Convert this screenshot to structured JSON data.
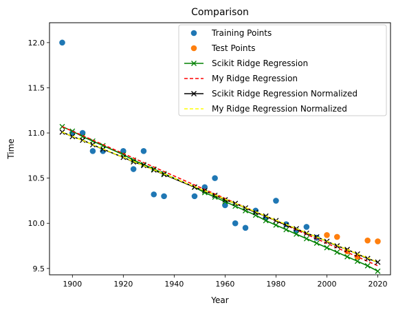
{
  "chart_data": {
    "type": "scatter",
    "title": "Comparison",
    "xlabel": "Year",
    "ylabel": "Time",
    "xlim": [
      1891,
      2025
    ],
    "ylim": [
      9.43,
      12.22
    ],
    "xticks": [
      1900,
      1920,
      1940,
      1960,
      1980,
      2000,
      2020
    ],
    "yticks": [
      9.5,
      10.0,
      10.5,
      11.0,
      11.5,
      12.0
    ],
    "ytick_labels": [
      "9.5",
      "10.0",
      "10.5",
      "11.0",
      "11.5",
      "12.0"
    ],
    "grid": false,
    "legend_position": "upper right",
    "colors": {
      "training": "#1f77b4",
      "test": "#ff7f0e",
      "scikit_ridge": "#008000",
      "my_ridge": "#ff0000",
      "scikit_ridge_normalized": "#000000",
      "my_ridge_normalized": "#ffff00"
    },
    "training_points": {
      "name": "Training Points",
      "x": [
        1896,
        1900,
        1904,
        1908,
        1912,
        1920,
        1924,
        1928,
        1932,
        1936,
        1948,
        1952,
        1956,
        1960,
        1964,
        1968,
        1972,
        1976,
        1980,
        1984,
        1988,
        1992,
        1996
      ],
      "y": [
        12.0,
        11.0,
        11.0,
        10.8,
        10.8,
        10.8,
        10.6,
        10.8,
        10.32,
        10.3,
        10.3,
        10.4,
        10.5,
        10.2,
        10.0,
        9.95,
        10.14,
        10.06,
        10.25,
        9.99,
        9.92,
        9.96,
        9.84
      ]
    },
    "test_points": {
      "name": "Test Points",
      "x": [
        2000,
        2004,
        2008,
        2012,
        2016,
        2020
      ],
      "y": [
        9.87,
        9.85,
        9.69,
        9.63,
        9.81,
        9.8
      ]
    },
    "lines": [
      {
        "name": "Scikit Ridge Regression",
        "style": "solid-x",
        "x": [
          1896,
          1900,
          1904,
          1908,
          1912,
          1920,
          1924,
          1928,
          1932,
          1936,
          1948,
          1952,
          1956,
          1960,
          1964,
          1968,
          1972,
          1976,
          1980,
          1984,
          1988,
          1992,
          1996,
          2000,
          2004,
          2008,
          2012,
          2016,
          2020
        ],
        "y": [
          11.07,
          11.02,
          10.96,
          10.91,
          10.86,
          10.76,
          10.7,
          10.65,
          10.6,
          10.55,
          10.4,
          10.34,
          10.29,
          10.24,
          10.19,
          10.14,
          10.09,
          10.03,
          9.98,
          9.93,
          9.88,
          9.83,
          9.78,
          9.73,
          9.68,
          9.63,
          9.58,
          9.53,
          9.47
        ]
      },
      {
        "name": "My Ridge Regression",
        "style": "dashed",
        "x": [
          1896,
          2020
        ],
        "y": [
          11.07,
          9.53
        ]
      },
      {
        "name": "Scikit Ridge Regression Normalized",
        "style": "solid-x",
        "x": [
          1896,
          1900,
          1904,
          1908,
          1912,
          1920,
          1924,
          1928,
          1932,
          1936,
          1948,
          1952,
          1956,
          1960,
          1964,
          1968,
          1972,
          1976,
          1980,
          1984,
          1988,
          1992,
          1996,
          2000,
          2004,
          2008,
          2012,
          2016,
          2020
        ],
        "y": [
          11.01,
          10.96,
          10.92,
          10.87,
          10.82,
          10.73,
          10.68,
          10.64,
          10.59,
          10.54,
          10.4,
          10.36,
          10.31,
          10.26,
          10.22,
          10.17,
          10.12,
          10.08,
          10.03,
          9.98,
          9.94,
          9.89,
          9.85,
          9.8,
          9.75,
          9.71,
          9.66,
          9.61,
          9.57
        ]
      },
      {
        "name": "My Ridge Regression Normalized",
        "style": "dashed",
        "x": [
          1896,
          2020
        ],
        "y": [
          11.01,
          9.57
        ]
      }
    ]
  }
}
